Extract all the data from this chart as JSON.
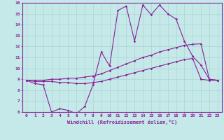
{
  "xlabel": "Windchill (Refroidissement éolien,°C)",
  "xlim": [
    -0.5,
    23.5
  ],
  "ylim": [
    6,
    16
  ],
  "xticks": [
    0,
    1,
    2,
    3,
    4,
    5,
    6,
    7,
    8,
    9,
    10,
    11,
    12,
    13,
    14,
    15,
    16,
    17,
    18,
    19,
    20,
    21,
    22,
    23
  ],
  "yticks": [
    6,
    7,
    8,
    9,
    10,
    11,
    12,
    13,
    14,
    15,
    16
  ],
  "bg_color": "#c5e8e8",
  "grid_color": "#b0d8d8",
  "line_color": "#882299",
  "lines": [
    {
      "x": [
        0,
        1,
        2,
        3,
        4,
        5,
        6,
        7,
        8,
        9,
        10,
        11,
        12,
        13,
        14,
        15,
        16,
        17,
        18,
        19,
        20,
        21,
        22,
        23
      ],
      "y": [
        8.9,
        8.6,
        8.5,
        6.0,
        6.3,
        6.15,
        5.85,
        6.5,
        8.5,
        11.5,
        10.2,
        15.3,
        15.7,
        12.5,
        15.8,
        14.9,
        15.8,
        15.0,
        14.5,
        12.5,
        11.1,
        10.3,
        9.0,
        8.9
      ]
    },
    {
      "x": [
        0,
        1,
        2,
        3,
        4,
        5,
        6,
        7,
        8,
        9,
        10,
        11,
        12,
        13,
        14,
        15,
        16,
        17,
        18,
        19,
        20,
        21,
        22,
        23
      ],
      "y": [
        8.9,
        8.9,
        8.9,
        9.0,
        9.0,
        9.1,
        9.1,
        9.2,
        9.3,
        9.5,
        9.8,
        10.1,
        10.4,
        10.7,
        11.0,
        11.2,
        11.5,
        11.7,
        11.9,
        12.1,
        12.2,
        12.25,
        9.0,
        8.9
      ]
    },
    {
      "x": [
        0,
        1,
        2,
        3,
        4,
        5,
        6,
        7,
        8,
        9,
        10,
        11,
        12,
        13,
        14,
        15,
        16,
        17,
        18,
        19,
        20,
        21,
        22,
        23
      ],
      "y": [
        8.9,
        8.8,
        8.8,
        8.8,
        8.7,
        8.7,
        8.6,
        8.6,
        8.7,
        8.8,
        9.0,
        9.2,
        9.4,
        9.6,
        9.8,
        10.0,
        10.2,
        10.4,
        10.6,
        10.8,
        10.9,
        9.0,
        8.9,
        8.9
      ]
    }
  ]
}
